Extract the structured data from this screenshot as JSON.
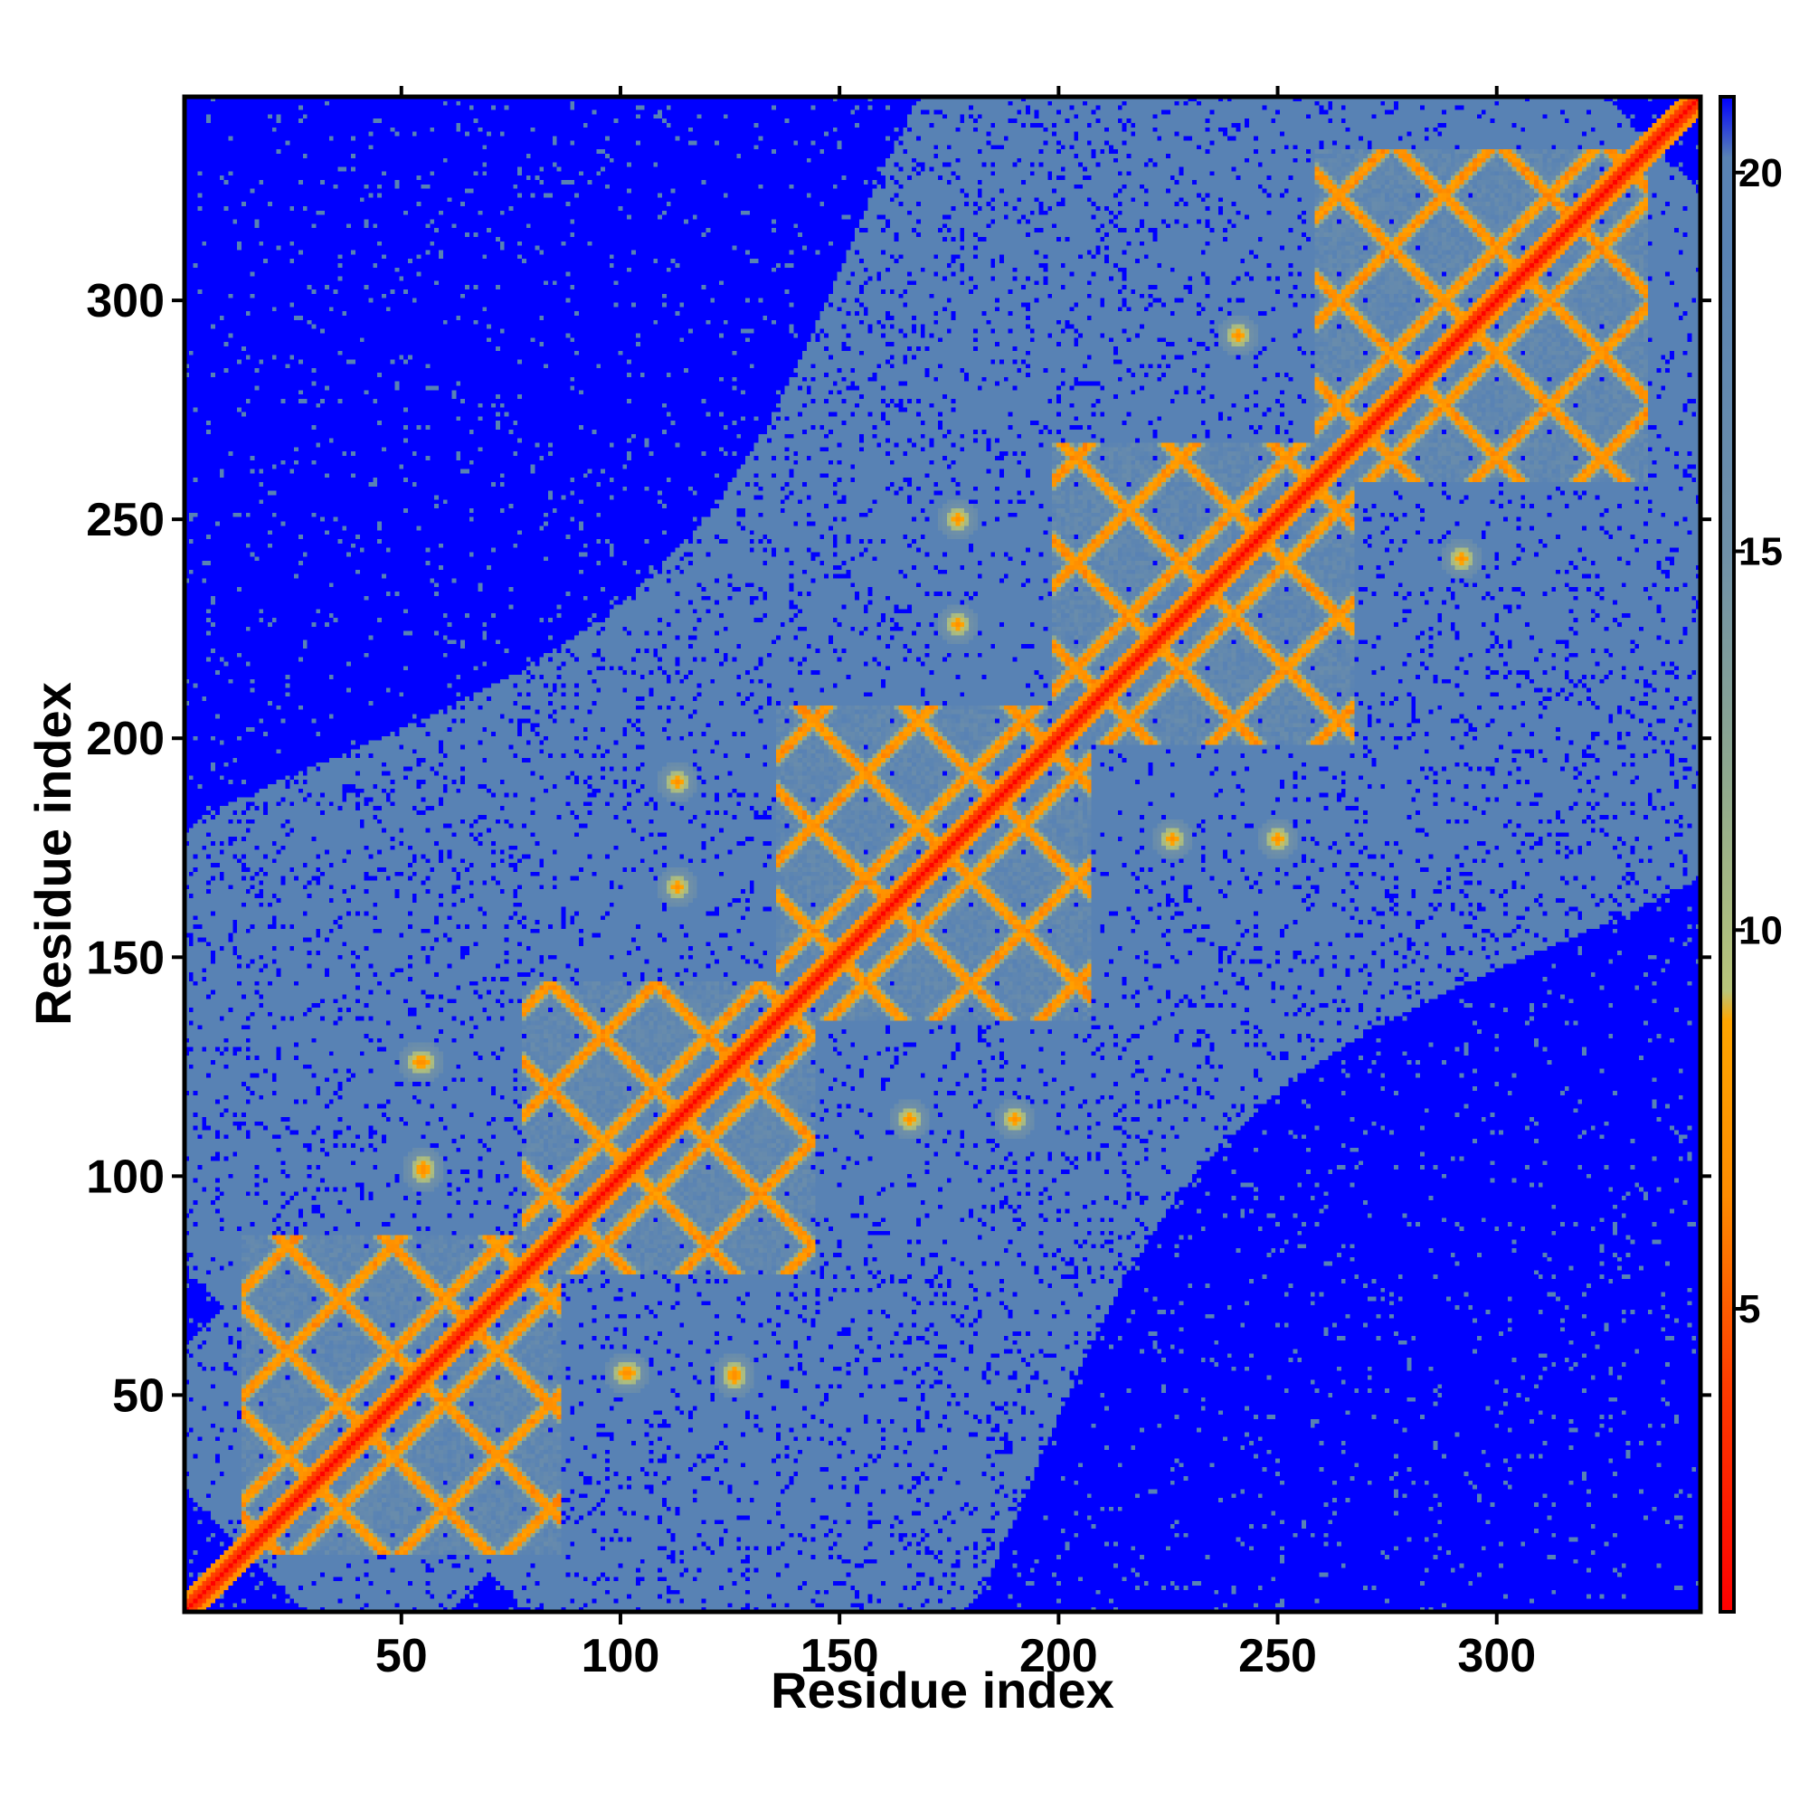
{
  "chart_data": {
    "type": "heatmap",
    "title": "",
    "xlabel": "Residue index",
    "ylabel": "Residue index",
    "n_residues": 346,
    "xlim": [
      0.5,
      346.5
    ],
    "ylim": [
      0.5,
      346.5
    ],
    "x_ticks": [
      50,
      100,
      150,
      200,
      250,
      300
    ],
    "y_ticks": [
      50,
      100,
      150,
      200,
      250,
      300
    ],
    "colorbar": {
      "ticks": [
        5,
        10,
        15,
        20
      ],
      "range": [
        1,
        21
      ],
      "stops": [
        {
          "value": 1,
          "color": "#ff0000"
        },
        {
          "value": 4,
          "color": "#ff3c00"
        },
        {
          "value": 6.5,
          "color": "#ff8c00"
        },
        {
          "value": 8.8,
          "color": "#ffa500"
        },
        {
          "value": 9.2,
          "color": "#b8c57a"
        },
        {
          "value": 12,
          "color": "#8fa88e"
        },
        {
          "value": 15,
          "color": "#6f90a8"
        },
        {
          "value": 19,
          "color": "#5882b4"
        },
        {
          "value": 20.2,
          "color": "#5882b4"
        },
        {
          "value": 21,
          "color": "#0000ff"
        }
      ]
    },
    "background_value": 21,
    "cutoff_value": 20,
    "contact_blocks": [
      {
        "start": 18,
        "end": 82
      },
      {
        "start": 82,
        "end": 140
      },
      {
        "start": 140,
        "end": 203
      },
      {
        "start": 203,
        "end": 263
      },
      {
        "start": 263,
        "end": 330
      }
    ],
    "off_diagonal_spots": [
      [
        55,
        126
      ],
      [
        55,
        101
      ],
      [
        102,
        55
      ],
      [
        126,
        54
      ],
      [
        113,
        190
      ],
      [
        113,
        166
      ],
      [
        166,
        113
      ],
      [
        190,
        113
      ],
      [
        177,
        250
      ],
      [
        177,
        226
      ],
      [
        226,
        177
      ],
      [
        250,
        177
      ],
      [
        241,
        292
      ],
      [
        292,
        241
      ]
    ]
  }
}
